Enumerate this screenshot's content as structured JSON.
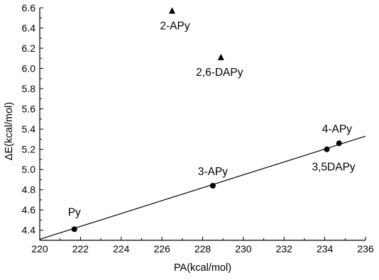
{
  "chart_data": {
    "type": "scatter",
    "title": "",
    "xlabel": "PA(kcal/mol)",
    "ylabel": "ΔE(kcal/mol)",
    "xlim": [
      220,
      236
    ],
    "ylim": [
      4.3,
      6.6
    ],
    "x_ticks": [
      "220",
      "222",
      "224",
      "226",
      "228",
      "230",
      "232",
      "234",
      "236"
    ],
    "y_ticks": [
      "4.4",
      "4.6",
      "4.8",
      "5.0",
      "5.2",
      "5.4",
      "5.6",
      "5.8",
      "6.0",
      "6.2",
      "6.4",
      "6.6"
    ],
    "grid": false,
    "series": [
      {
        "marker": "circle",
        "points": [
          {
            "label": "Py",
            "x": 221.7,
            "y": 4.41
          },
          {
            "label": "3-APy",
            "x": 228.5,
            "y": 4.84
          },
          {
            "label": "3,5DAPy",
            "x": 234.1,
            "y": 5.2
          },
          {
            "label": "4-APy",
            "x": 234.7,
            "y": 5.26
          }
        ]
      },
      {
        "marker": "triangle",
        "points": [
          {
            "label": "2-APy",
            "x": 226.5,
            "y": 6.57
          },
          {
            "label": "2,6-DAPy",
            "x": 228.9,
            "y": 6.11
          }
        ]
      }
    ],
    "fit_line": {
      "x": [
        220,
        236
      ],
      "y": [
        4.31,
        5.33
      ]
    }
  }
}
